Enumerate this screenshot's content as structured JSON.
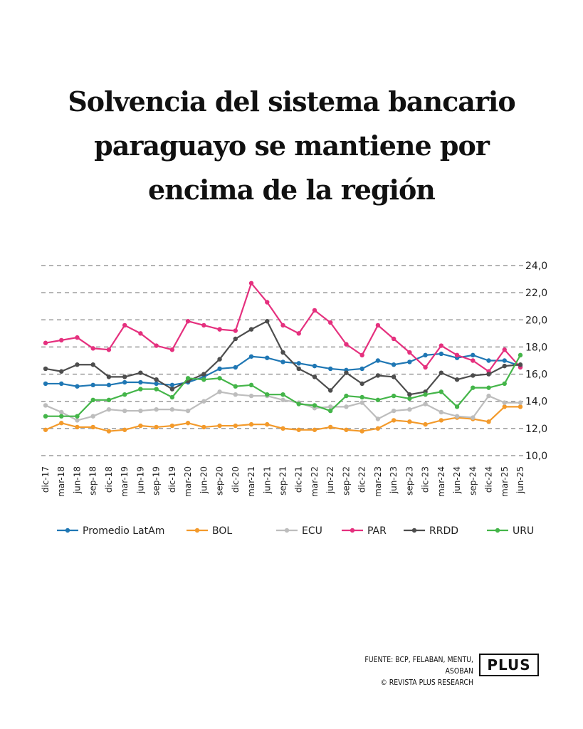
{
  "title_lines": [
    "Solvencia del sistema bancario",
    "paraguayo se mantiene por",
    "encima de la región"
  ],
  "source": {
    "line1": "FUENTE: BCP, FELABAN, MENTU, ASOBAN",
    "line2": "© REVISTA PLUS RESEARCH"
  },
  "logo_text": "PLUS",
  "chart_data": {
    "type": "line",
    "title": "Solvencia del sistema bancario paraguayo se mantiene por encima de la región",
    "categories": [
      "dic-17",
      "mar-18",
      "jun-18",
      "sep-18",
      "dic-18",
      "mar-19",
      "jun-19",
      "sep-19",
      "dic-19",
      "mar-20",
      "jun-20",
      "sep-20",
      "dic-20",
      "mar-21",
      "jun-21",
      "sep-21",
      "dic-21",
      "mar-22",
      "jun-22",
      "sep-22",
      "dic-22",
      "mar-23",
      "jun-23",
      "sep-23",
      "dic-23",
      "mar-24",
      "jun-24",
      "sep-24",
      "dic-24",
      "mar-25",
      "jun-25"
    ],
    "ylim": [
      10,
      24
    ],
    "yticks": [
      "10,0",
      "12,0",
      "14,0",
      "16,0",
      "18,0",
      "20,0",
      "22,0",
      "24,0"
    ],
    "yaxis_position": "right",
    "grid": "horizontal dashed",
    "legend_position": "bottom",
    "series": [
      {
        "name": "Promedio LatAm",
        "color": "#1f77b4",
        "values": [
          15.3,
          15.3,
          15.1,
          15.2,
          15.2,
          15.4,
          15.4,
          15.3,
          15.2,
          15.4,
          15.8,
          16.4,
          16.5,
          17.3,
          17.2,
          16.9,
          16.8,
          16.6,
          16.4,
          16.3,
          16.4,
          17.0,
          16.7,
          16.9,
          17.4,
          17.5,
          17.2,
          17.4,
          17.0,
          17.0,
          16.6
        ]
      },
      {
        "name": "BOL",
        "color": "#f39a2b",
        "values": [
          11.9,
          12.4,
          12.1,
          12.1,
          11.8,
          11.9,
          12.2,
          12.1,
          12.2,
          12.4,
          12.1,
          12.2,
          12.2,
          12.3,
          12.3,
          12.0,
          11.9,
          11.9,
          12.1,
          11.9,
          11.8,
          12.0,
          12.6,
          12.5,
          12.3,
          12.6,
          12.8,
          12.7,
          12.5,
          13.6,
          13.6
        ]
      },
      {
        "name": "ECU",
        "color": "#bdbdbd",
        "values": [
          13.7,
          13.2,
          12.6,
          12.9,
          13.4,
          13.3,
          13.3,
          13.4,
          13.4,
          13.3,
          14.0,
          14.7,
          14.5,
          14.4,
          14.4,
          14.1,
          13.9,
          13.5,
          13.6,
          13.6,
          13.9,
          12.7,
          13.3,
          13.4,
          13.8,
          13.2,
          12.9,
          12.8,
          14.4,
          13.9,
          13.9
        ]
      },
      {
        "name": "PAR",
        "color": "#e5307e",
        "values": [
          18.3,
          18.5,
          18.7,
          17.9,
          17.8,
          19.6,
          19.0,
          18.1,
          17.8,
          19.9,
          19.6,
          19.3,
          19.2,
          22.7,
          21.3,
          19.6,
          19.0,
          20.7,
          19.8,
          18.2,
          17.4,
          19.6,
          18.6,
          17.6,
          16.5,
          18.1,
          17.4,
          17.0,
          16.2,
          17.8,
          16.5
        ]
      },
      {
        "name": "RRDD",
        "color": "#4d4d4d",
        "values": [
          16.4,
          16.2,
          16.7,
          16.7,
          15.8,
          15.8,
          16.1,
          15.6,
          14.9,
          15.5,
          16.0,
          17.1,
          18.6,
          19.3,
          19.9,
          17.6,
          16.4,
          15.8,
          14.8,
          16.1,
          15.3,
          15.9,
          15.8,
          14.5,
          14.7,
          16.1,
          15.6,
          15.9,
          16.0,
          16.6,
          16.7
        ]
      },
      {
        "name": "URU",
        "color": "#44b549",
        "values": [
          12.9,
          12.9,
          12.9,
          14.1,
          14.1,
          14.5,
          14.9,
          14.9,
          14.3,
          15.7,
          15.6,
          15.7,
          15.1,
          15.2,
          14.5,
          14.5,
          13.8,
          13.7,
          13.3,
          14.4,
          14.3,
          14.1,
          14.4,
          14.2,
          14.5,
          14.7,
          13.6,
          15.0,
          15.0,
          15.3,
          17.4
        ]
      }
    ]
  }
}
